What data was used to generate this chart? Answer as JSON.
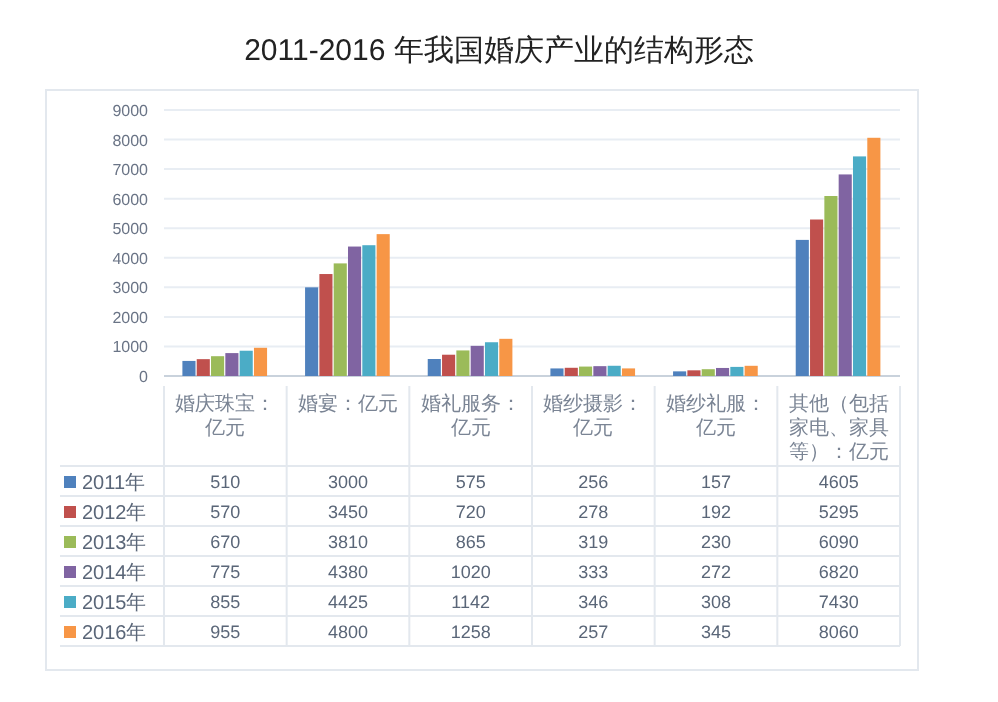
{
  "chart_data": {
    "type": "bar",
    "title": "2011-2016 年我国婚庆产业的结构形态",
    "categories": [
      "婚庆珠宝：亿元",
      "婚宴：亿元",
      "婚礼服务：亿元",
      "婚纱摄影：亿元",
      "婚纱礼服：亿元",
      "其他（包括家电、家具等）：亿元"
    ],
    "series": [
      {
        "name": "2011年",
        "color": "#4f81bd",
        "values": [
          510,
          3000,
          575,
          256,
          157,
          4605
        ]
      },
      {
        "name": "2012年",
        "color": "#c0504d",
        "values": [
          570,
          3450,
          720,
          278,
          192,
          5295
        ]
      },
      {
        "name": "2013年",
        "color": "#9bbb59",
        "values": [
          670,
          3810,
          865,
          319,
          230,
          6090
        ]
      },
      {
        "name": "2014年",
        "color": "#8064a2",
        "values": [
          775,
          4380,
          1020,
          333,
          272,
          6820
        ]
      },
      {
        "name": "2015年",
        "color": "#4bacc6",
        "values": [
          855,
          4425,
          1142,
          346,
          308,
          7430
        ]
      },
      {
        "name": "2016年",
        "color": "#f79646",
        "values": [
          955,
          4800,
          1258,
          257,
          345,
          8060
        ]
      }
    ],
    "ylim": [
      0,
      9000
    ],
    "yticks": [
      0,
      1000,
      2000,
      3000,
      4000,
      5000,
      6000,
      7000,
      8000,
      9000
    ],
    "grid": "y",
    "data_labels": true,
    "legend": "bottom"
  }
}
